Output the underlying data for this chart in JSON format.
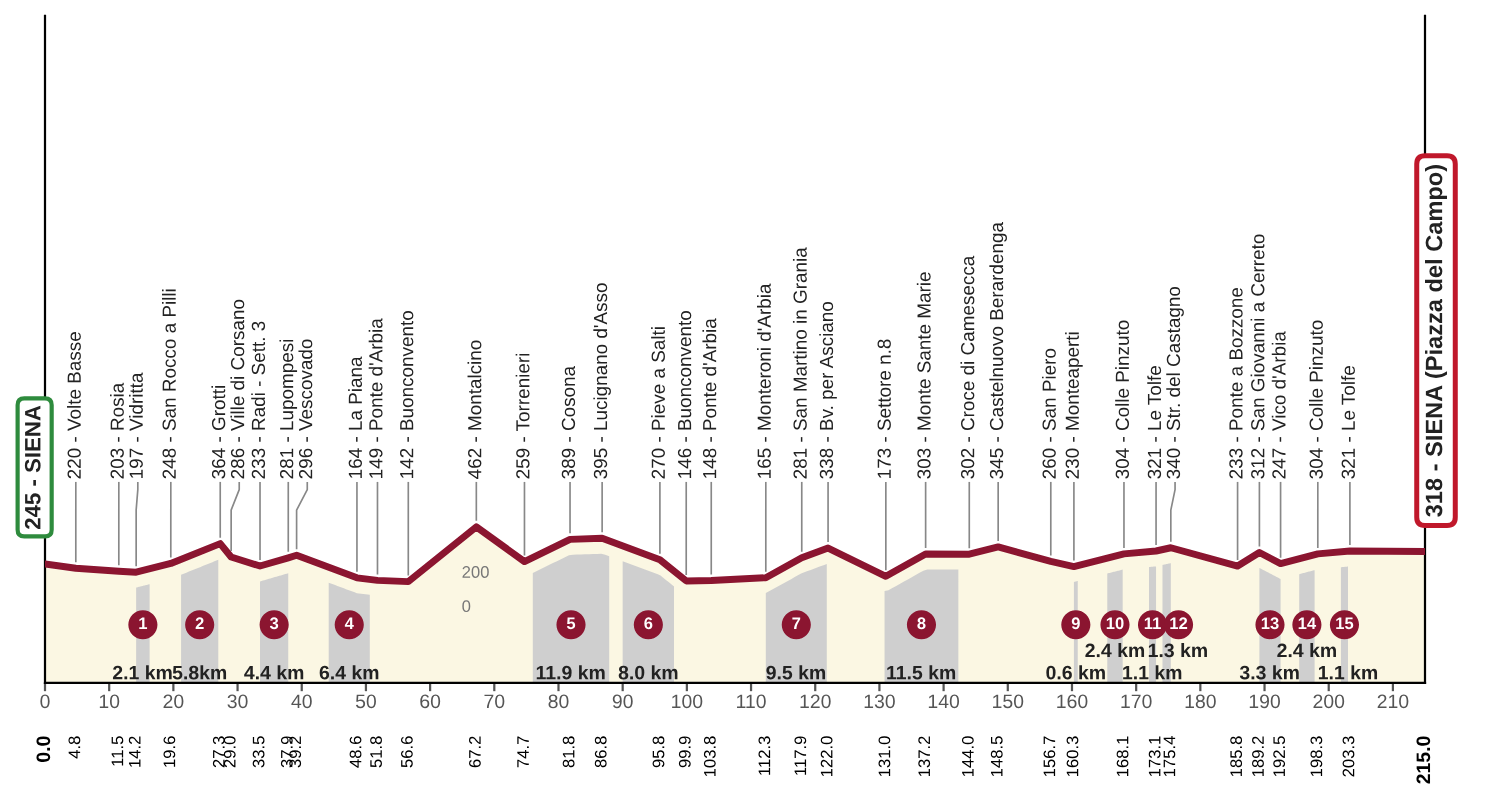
{
  "chart_data": {
    "type": "area",
    "color": "#8b1530",
    "x": [
      0.0,
      4.8,
      11.5,
      14.2,
      19.6,
      27.3,
      29.0,
      33.5,
      37.9,
      39.2,
      48.6,
      51.8,
      56.6,
      67.2,
      74.7,
      81.8,
      86.8,
      95.8,
      99.9,
      103.8,
      112.3,
      117.9,
      122.0,
      131.0,
      137.2,
      144.0,
      148.5,
      156.7,
      160.3,
      168.1,
      173.1,
      175.4,
      185.8,
      189.2,
      192.5,
      198.3,
      203.3,
      215.0
    ],
    "values": [
      245,
      220,
      203,
      197,
      248,
      364,
      286,
      233,
      281,
      296,
      164,
      149,
      142,
      462,
      259,
      389,
      395,
      270,
      146,
      148,
      165,
      281,
      338,
      173,
      303,
      302,
      345,
      260,
      230,
      304,
      321,
      340,
      233,
      312,
      247,
      304,
      321,
      318
    ],
    "xlim": [
      0,
      215
    ],
    "ylim": [
      -450,
      3450
    ],
    "xticks": [
      0,
      10,
      20,
      30,
      40,
      50,
      60,
      70,
      80,
      90,
      100,
      110,
      120,
      130,
      140,
      150,
      160,
      170,
      180,
      190,
      200,
      210
    ],
    "yticks": [
      0,
      200
    ],
    "x2lim": [
      0,
      215
    ],
    "x2ticks": [
      {
        "value": 0,
        "label": "0.0"
      },
      4.8,
      11.5,
      14.2,
      19.6,
      27.3,
      {
        "value": 29,
        "label": "29.0"
      },
      33.5,
      37.9,
      39.2,
      48.6,
      51.8,
      56.6,
      67.2,
      74.7,
      81.8,
      86.8,
      95.8,
      99.9,
      103.8,
      112.3,
      117.9,
      {
        "value": 122,
        "label": "122.0"
      },
      {
        "value": 131,
        "label": "131.0"
      },
      137.2,
      {
        "value": 144,
        "label": "144.0"
      },
      148.5,
      156.7,
      160.3,
      168.1,
      173.1,
      175.4,
      185.8,
      189.2,
      192.5,
      198.3,
      203.3,
      {
        "value": 215,
        "label": "215.0"
      }
    ],
    "bands": [
      {
        "axis": "x",
        "from": 14.2,
        "to": 16.3,
        "label": "1",
        "color": "#cfcfcf"
      },
      {
        "axis": "x",
        "from": 21.2,
        "to": 27.0,
        "label": "2",
        "color": "#cfcfcf"
      },
      {
        "axis": "x",
        "from": 33.5,
        "to": 37.9,
        "label": "3",
        "color": "#cfcfcf"
      },
      {
        "axis": "x",
        "from": 44.2,
        "to": 50.6,
        "label": "4",
        "color": "#cfcfcf"
      },
      {
        "axis": "x",
        "from": 76.0,
        "to": 87.9,
        "label": "5",
        "color": "#cfcfcf"
      },
      {
        "axis": "x",
        "from": 90.0,
        "to": 98.0,
        "label": "6",
        "color": "#cfcfcf"
      },
      {
        "axis": "x",
        "from": 112.3,
        "to": 121.8,
        "label": "7",
        "color": "#cfcfcf"
      },
      {
        "axis": "x",
        "from": 130.8,
        "to": 142.3,
        "label": "8",
        "color": "#cfcfcf"
      },
      {
        "axis": "x",
        "from": 160.3,
        "to": 160.9,
        "label": "9",
        "color": "#cfcfcf"
      },
      {
        "axis": "x",
        "from": 165.5,
        "to": 167.9,
        "label": "10",
        "color": "#cfcfcf"
      },
      {
        "axis": "x",
        "from": 172.0,
        "to": 173.1,
        "label": "11",
        "color": "#cfcfcf"
      },
      {
        "axis": "x",
        "from": 174.1,
        "to": 175.4,
        "label": "12",
        "color": "#cfcfcf"
      },
      {
        "axis": "x",
        "from": 189.2,
        "to": 192.5,
        "label": "13",
        "color": "#cfcfcf"
      },
      {
        "axis": "x",
        "from": 195.4,
        "to": 197.8,
        "label": "14",
        "color": "#cfcfcf"
      },
      {
        "axis": "x",
        "from": 201.9,
        "to": 203.0,
        "label": "15",
        "color": "#cfcfcf"
      }
    ],
    "annotations": [
      {
        "text": "245 - SIENA",
        "x": 0.0,
        "y": 245
      },
      {
        "text": "220 - Volte Basse",
        "x": 4.8,
        "y": 220
      },
      {
        "text": "203 - Rosia",
        "x": 11.5,
        "y": 203
      },
      {
        "text": "197 - Vidritta",
        "x": 14.2,
        "y": 197
      },
      {
        "text": "248 - San Rocco a Pilli",
        "x": 19.6,
        "y": 248
      },
      {
        "text": "364 - Grotti",
        "x": 27.3,
        "y": 364
      },
      {
        "text": "286 - Ville di Corsano",
        "x": 29.0,
        "y": 286
      },
      {
        "text": "233 - Radi - Sett. 3",
        "x": 33.5,
        "y": 233
      },
      {
        "text": "281 - Lupompesi",
        "x": 37.9,
        "y": 281
      },
      {
        "text": "296 - Vescovado",
        "x": 39.2,
        "y": 296
      },
      {
        "text": "164 - La Piana",
        "x": 48.6,
        "y": 164
      },
      {
        "text": "149 - Ponte d'Arbia",
        "x": 51.8,
        "y": 149
      },
      {
        "text": "142 - Buonconvento",
        "x": 56.6,
        "y": 142
      },
      {
        "text": "462 - Montalcino",
        "x": 67.2,
        "y": 462
      },
      {
        "text": "259 - Torrenieri",
        "x": 74.7,
        "y": 259
      },
      {
        "text": "389 - Cosona",
        "x": 81.8,
        "y": 389
      },
      {
        "text": "395 - Lucignano d'Asso",
        "x": 86.8,
        "y": 395
      },
      {
        "text": "270 - Pieve a Salti",
        "x": 95.8,
        "y": 270
      },
      {
        "text": "146 - Buonconvento",
        "x": 99.9,
        "y": 146
      },
      {
        "text": "148 - Ponte d'Arbia",
        "x": 103.8,
        "y": 148
      },
      {
        "text": "165 - Monteroni d'Arbia",
        "x": 112.3,
        "y": 165
      },
      {
        "text": "281 - San Martino in Grania",
        "x": 117.9,
        "y": 281
      },
      {
        "text": "338 - Bv. per Asciano",
        "x": 122.0,
        "y": 338
      },
      {
        "text": "173 - Settore n.8",
        "x": 131.0,
        "y": 173
      },
      {
        "text": "303 - Monte Sante Marie",
        "x": 137.2,
        "y": 303
      },
      {
        "text": "302 - Croce di Camesecca",
        "x": 144.0,
        "y": 302
      },
      {
        "text": "345 - Castelnuovo Berardenga",
        "x": 148.5,
        "y": 345
      },
      {
        "text": "260 - San Piero",
        "x": 156.7,
        "y": 260
      },
      {
        "text": "230 - Monteaperti",
        "x": 160.3,
        "y": 230
      },
      {
        "text": "304 - Colle Pinzuto",
        "x": 168.1,
        "y": 304
      },
      {
        "text": "321 - Le Tolfe",
        "x": 173.1,
        "y": 321
      },
      {
        "text": "340 - Str. del Castagno",
        "x": 175.4,
        "y": 340
      },
      {
        "text": "233 - Ponte a Bozzone",
        "x": 185.8,
        "y": 233
      },
      {
        "text": "312 - San Giovanni a Cerreto",
        "x": 189.2,
        "y": 312
      },
      {
        "text": "247 - Vico d'Arbia",
        "x": 192.5,
        "y": 247
      },
      {
        "text": "304 - Colle Pinzuto",
        "x": 198.3,
        "y": 304
      },
      {
        "text": "321 - Le Tolfe",
        "x": 203.3,
        "y": 321
      },
      {
        "text": "318 - SIENA (Piazza del Campo)",
        "x": 215.0,
        "y": 318
      },
      {
        "text": "2.1 km",
        "x": 15.2,
        "y": -400
      },
      {
        "text": "5.8km",
        "x": 24.1,
        "y": -400
      },
      {
        "text": "4.4 km",
        "x": 35.7,
        "y": -400
      },
      {
        "text": "6.4 km",
        "x": 47.4,
        "y": -400
      },
      {
        "text": "11.9 km",
        "x": 81.9,
        "y": -400
      },
      {
        "text": "8.0 km",
        "x": 94.0,
        "y": -400
      },
      {
        "text": "9.5 km",
        "x": 117.0,
        "y": -400
      },
      {
        "text": "11.5 km",
        "x": 136.5,
        "y": -400
      },
      {
        "text": "0.6 km",
        "x": 160.6,
        "y": -400
      },
      {
        "text": "2.4 km",
        "x": 166.7,
        "y": -270
      },
      {
        "text": "1.1 km",
        "x": 172.5,
        "y": -400
      },
      {
        "text": "1.3 km",
        "x": 176.5,
        "y": -270
      },
      {
        "text": "3.3 km",
        "x": 190.8,
        "y": -400
      },
      {
        "text": "2.4 km",
        "x": 196.6,
        "y": -270
      },
      {
        "text": "1.1 km",
        "x": 203.0,
        "y": -400
      }
    ]
  }
}
